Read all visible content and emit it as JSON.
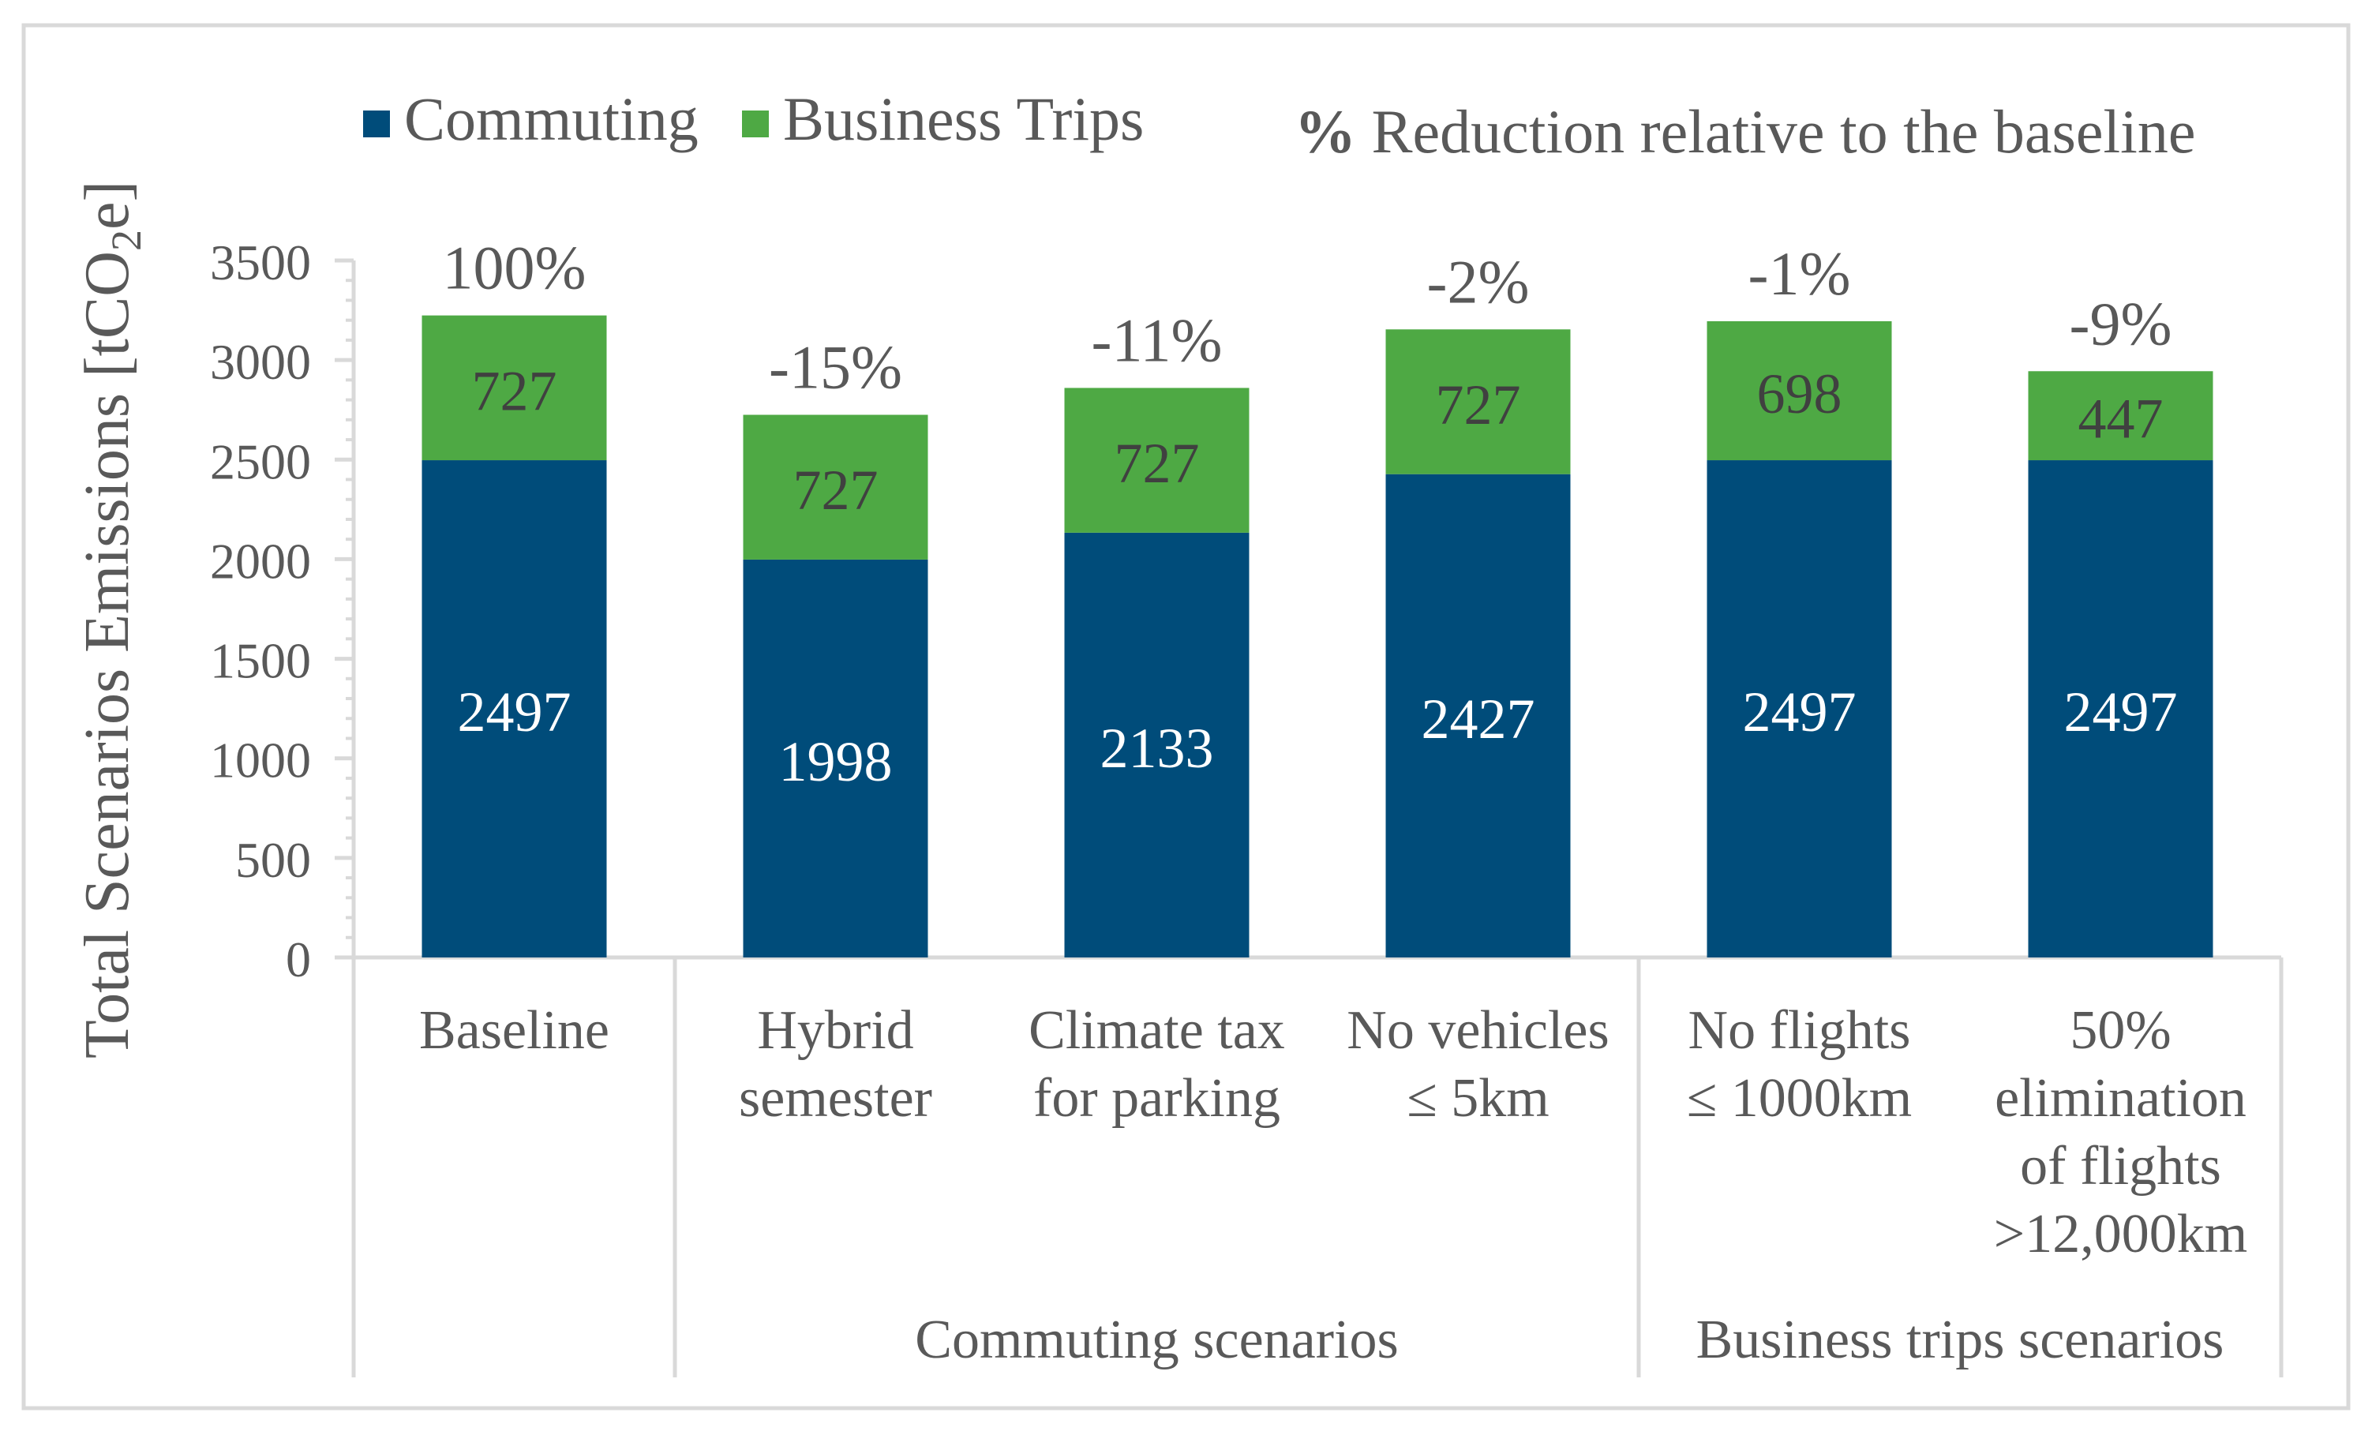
{
  "chart_data": {
    "type": "bar",
    "stacked": true,
    "title": "",
    "ylabel_parts": [
      "Total Scenarios Emissions [tCO",
      "2",
      "e]"
    ],
    "ylim": [
      0,
      3500
    ],
    "yticks": [
      0,
      500,
      1000,
      1500,
      2000,
      2500,
      3000,
      3500
    ],
    "categories": [
      [
        "Baseline"
      ],
      [
        "Hybrid",
        "semester"
      ],
      [
        "Climate tax",
        "for parking"
      ],
      [
        "No vehicles",
        "≤ 5km"
      ],
      [
        "No flights",
        "≤ 1000km"
      ],
      [
        "50%",
        "elimination",
        "of flights",
        ">12,000km"
      ]
    ],
    "series": [
      {
        "name": "Commuting",
        "color": "#004c7a",
        "values": [
          2497,
          1998,
          2133,
          2427,
          2497,
          2497
        ]
      },
      {
        "name": "Business Trips",
        "color": "#4ea944",
        "values": [
          727,
          727,
          727,
          727,
          698,
          447
        ]
      }
    ],
    "percent_labels": [
      "100%",
      "-15%",
      "-11%",
      "-2%",
      "-1%",
      "-9%"
    ],
    "percent_legend": {
      "symbol": "%",
      "text": " Reduction relative to the baseline"
    },
    "groups": [
      {
        "label": "Commuting scenarios",
        "from": 1,
        "to": 3
      },
      {
        "label": "Business trips scenarios",
        "from": 4,
        "to": 5
      }
    ],
    "colors": {
      "axis": "#d9d9d9",
      "text": "#595959",
      "bar_label_on_dark": "#ffffff",
      "bar_label_on_light": "#404040"
    }
  }
}
